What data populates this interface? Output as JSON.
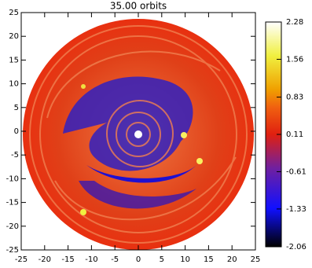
{
  "chart_data": {
    "type": "heatmap",
    "title": "35.00 orbits",
    "xlim": [
      -25,
      25
    ],
    "ylim": [
      -25,
      25
    ],
    "xticks": [
      -25,
      -20,
      -15,
      -10,
      -5,
      0,
      5,
      10,
      15,
      20,
      25
    ],
    "yticks": [
      -25,
      -20,
      -15,
      -10,
      -5,
      0,
      5,
      10,
      15,
      20,
      25
    ],
    "colorbar": {
      "lim": [
        -2.06,
        2.28
      ],
      "ticks": [
        -2.06,
        -1.33,
        -0.61,
        0.11,
        0.83,
        1.56,
        2.28
      ]
    }
  }
}
